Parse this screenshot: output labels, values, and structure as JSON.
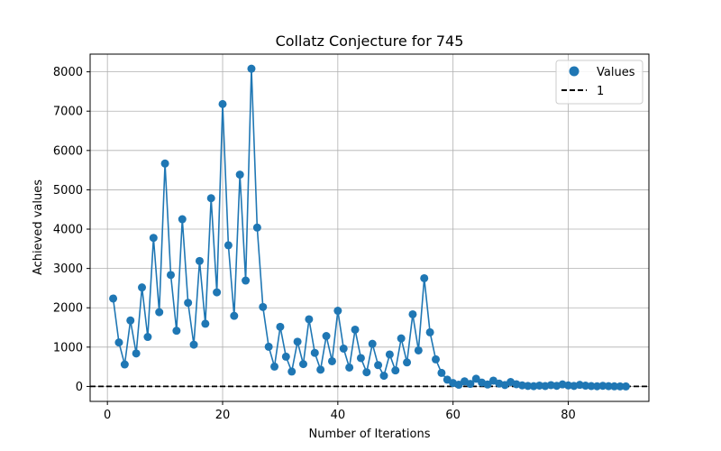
{
  "chart_data": {
    "type": "line",
    "title": "Collatz Conjecture for 745",
    "xlabel": "Number of Iterations",
    "ylabel": "Achieved values",
    "xlim": [
      -3,
      94
    ],
    "ylim": [
      -380,
      8450
    ],
    "xticks": [
      0,
      20,
      40,
      60,
      80
    ],
    "yticks": [
      0,
      1000,
      2000,
      3000,
      4000,
      5000,
      6000,
      7000,
      8000
    ],
    "grid": true,
    "legend_position": "top-right",
    "colors": {
      "series": "#1f77b4",
      "reference": "#000000"
    },
    "series": [
      {
        "name": "Values",
        "x": [
          1,
          2,
          3,
          4,
          5,
          6,
          7,
          8,
          9,
          10,
          11,
          12,
          13,
          14,
          15,
          16,
          17,
          18,
          19,
          20,
          21,
          22,
          23,
          24,
          25,
          26,
          27,
          28,
          29,
          30,
          31,
          32,
          33,
          34,
          35,
          36,
          37,
          38,
          39,
          40,
          41,
          42,
          43,
          44,
          45,
          46,
          47,
          48,
          49,
          50,
          51,
          52,
          53,
          54,
          55,
          56,
          57,
          58,
          59,
          60,
          61,
          62,
          63,
          64,
          65,
          66,
          67,
          68,
          69,
          70,
          71,
          72,
          73,
          74,
          75,
          76,
          77,
          78,
          79,
          80,
          81,
          82,
          83,
          84,
          85,
          86,
          87,
          88,
          89,
          90
        ],
        "values": [
          2236,
          1118,
          559,
          1678,
          839,
          2518,
          1259,
          3778,
          1889,
          5668,
          2834,
          1417,
          4252,
          2126,
          1063,
          3190,
          1595,
          4786,
          2393,
          7180,
          3590,
          1795,
          5386,
          2693,
          8080,
          4040,
          2020,
          1010,
          505,
          1516,
          758,
          379,
          1138,
          569,
          1708,
          854,
          427,
          1282,
          641,
          1924,
          962,
          481,
          1444,
          722,
          361,
          1084,
          542,
          271,
          814,
          407,
          1222,
          611,
          1834,
          917,
          2752,
          1376,
          688,
          344,
          172,
          86,
          43,
          130,
          65,
          196,
          98,
          49,
          148,
          74,
          37,
          112,
          56,
          28,
          14,
          7,
          22,
          11,
          34,
          17,
          52,
          26,
          13,
          40,
          20,
          10,
          5,
          16,
          8,
          4,
          2,
          1
        ]
      }
    ],
    "reference_lines": [
      {
        "name": "1",
        "y": 1,
        "style": "dashed"
      }
    ]
  }
}
